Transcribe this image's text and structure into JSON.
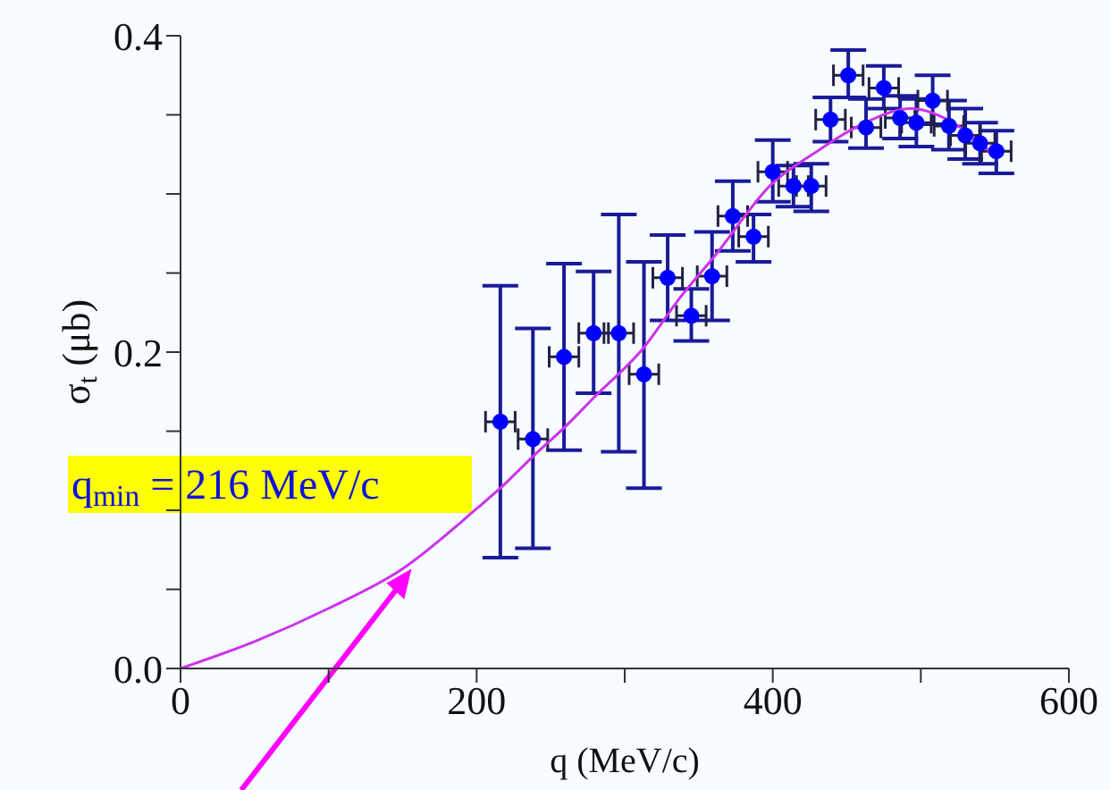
{
  "chart_data": {
    "type": "scatter",
    "xlabel": "q (MeV/c)",
    "ylabel": "σ$_{t}$ (μb)",
    "xlim": [
      0,
      600
    ],
    "xticks": [
      0,
      {
        "value": 100,
        "label": null
      },
      200,
      {
        "value": 300,
        "label": null
      },
      400,
      {
        "value": 500,
        "label": null
      },
      600
    ],
    "ylim": [
      0,
      0.4
    ],
    "yticks": [
      {
        "value": 0,
        "label": "0.0"
      },
      {
        "value": 0.05,
        "label": null
      },
      {
        "value": 0.1,
        "label": null
      },
      {
        "value": 0.15,
        "label": null
      },
      0.2,
      {
        "value": 0.25,
        "label": null
      },
      {
        "value": 0.3,
        "label": null
      },
      {
        "value": 0.35,
        "label": null
      },
      0.4
    ],
    "annotations": [
      {
        "text": "q$_{min}$ = 216 MeV/c",
        "x": 156,
        "y": 0.063
      }
    ],
    "series": [
      {
        "marker": "circle",
        "color": "#0000ff",
        "x": [
          216,
          238,
          259,
          279,
          296,
          313,
          329,
          345,
          359,
          373,
          387,
          400,
          414,
          426,
          439,
          451,
          463,
          475,
          486,
          497,
          508,
          519,
          530,
          540,
          551
        ],
        "values": [
          0.156,
          0.145,
          0.197,
          0.212,
          0.212,
          0.186,
          0.247,
          0.223,
          0.248,
          0.286,
          0.273,
          0.314,
          0.305,
          0.305,
          0.347,
          0.375,
          0.342,
          0.367,
          0.348,
          0.345,
          0.359,
          0.343,
          0.337,
          0.332,
          0.327
        ],
        "errors": [
          [
            0.07,
            0.242
          ],
          [
            0.076,
            0.215
          ],
          [
            0.138,
            0.256
          ],
          [
            0.174,
            0.251
          ],
          [
            0.137,
            0.287
          ],
          [
            0.114,
            0.257
          ],
          [
            0.22,
            0.274
          ],
          [
            0.207,
            0.24
          ],
          [
            0.22,
            0.276
          ],
          [
            0.264,
            0.308
          ],
          [
            0.257,
            0.287
          ],
          [
            0.295,
            0.334
          ],
          [
            0.292,
            0.318
          ],
          [
            0.289,
            0.319
          ],
          [
            0.333,
            0.361
          ],
          [
            0.361,
            0.391
          ],
          [
            0.329,
            0.36
          ],
          [
            0.354,
            0.381
          ],
          [
            0.335,
            0.362
          ],
          [
            0.33,
            0.36
          ],
          [
            0.344,
            0.375
          ],
          [
            0.328,
            0.359
          ],
          [
            0.322,
            0.354
          ],
          [
            0.319,
            0.345
          ],
          [
            0.313,
            0.34
          ]
        ],
        "xerrors": [
          10,
          10,
          10,
          10,
          10,
          10,
          10,
          10,
          10,
          10,
          10,
          10,
          10,
          10,
          10,
          10,
          10,
          10,
          10,
          10,
          10,
          10,
          10,
          10,
          10
        ]
      },
      {
        "type": "line",
        "color": "#cc33ee",
        "x": [
          0,
          50,
          100,
          150,
          200,
          216,
          238,
          260,
          280,
          313,
          337,
          361,
          399,
          430,
          458,
          494,
          518,
          551
        ],
        "values": [
          0,
          0.017,
          0.038,
          0.063,
          0.101,
          0.114,
          0.134,
          0.153,
          0.172,
          0.203,
          0.234,
          0.261,
          0.306,
          0.327,
          0.343,
          0.354,
          0.347,
          0.323
        ]
      }
    ]
  }
}
